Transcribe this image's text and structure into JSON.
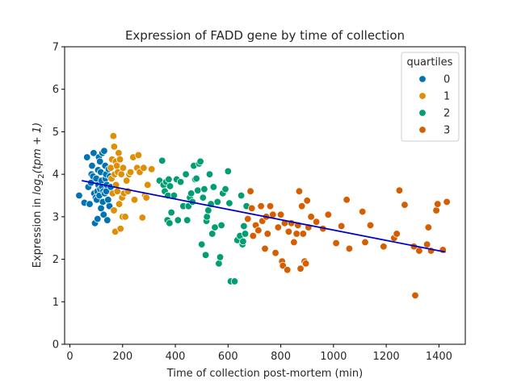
{
  "chart_data": {
    "type": "scatter",
    "title": "Expression of FADD gene by time of collection",
    "xlabel": "Time of collection post-mortem (min)",
    "ylabel_prefix": "Expression in ",
    "ylabel_math": "log",
    "ylabel_sub": "2",
    "ylabel_suffix": "(tpm + 1)",
    "xlim": [
      -20,
      1500
    ],
    "ylim": [
      0,
      7
    ],
    "xticks": [
      0,
      200,
      400,
      600,
      800,
      1000,
      1200,
      1400
    ],
    "yticks": [
      0,
      1,
      2,
      3,
      4,
      5,
      6,
      7
    ],
    "grid": false,
    "legend": {
      "title": "quartiles",
      "position": "top-right"
    },
    "trend_line": {
      "color": "#0000cc",
      "x": [
        45,
        1425
      ],
      "y": [
        3.85,
        2.17
      ]
    },
    "series": [
      {
        "name": "0",
        "color": "#0173b2",
        "points": [
          [
            35,
            3.5
          ],
          [
            55,
            3.33
          ],
          [
            65,
            4.4
          ],
          [
            70,
            3.7
          ],
          [
            75,
            3.3
          ],
          [
            80,
            3.8
          ],
          [
            82,
            4.0
          ],
          [
            84,
            4.2
          ],
          [
            88,
            3.95
          ],
          [
            90,
            4.5
          ],
          [
            92,
            3.55
          ],
          [
            95,
            2.85
          ],
          [
            98,
            3.45
          ],
          [
            100,
            3.9
          ],
          [
            102,
            3.4
          ],
          [
            104,
            3.6
          ],
          [
            105,
            2.95
          ],
          [
            107,
            4.1
          ],
          [
            108,
            3.75
          ],
          [
            110,
            4.4
          ],
          [
            112,
            3.5
          ],
          [
            114,
            4.3
          ],
          [
            115,
            3.65
          ],
          [
            117,
            4.05
          ],
          [
            118,
            3.2
          ],
          [
            120,
            3.85
          ],
          [
            122,
            3.7
          ],
          [
            123,
            4.5
          ],
          [
            125,
            3.35
          ],
          [
            127,
            3.6
          ],
          [
            128,
            3.05
          ],
          [
            130,
            4.55
          ],
          [
            132,
            3.55
          ],
          [
            134,
            4.2
          ],
          [
            135,
            3.9
          ],
          [
            137,
            4.0
          ],
          [
            138,
            3.6
          ],
          [
            140,
            3.75
          ],
          [
            142,
            2.92
          ],
          [
            145,
            3.4
          ],
          [
            147,
            4.12
          ],
          [
            150,
            3.25
          ],
          [
            152,
            3.95
          ],
          [
            155,
            3.7
          ]
        ]
      },
      {
        "name": "1",
        "color": "#de8f05",
        "points": [
          [
            155,
            4.15
          ],
          [
            158,
            3.9
          ],
          [
            160,
            4.35
          ],
          [
            162,
            3.55
          ],
          [
            165,
            4.9
          ],
          [
            167,
            3.15
          ],
          [
            168,
            4.65
          ],
          [
            170,
            4.0
          ],
          [
            172,
            2.65
          ],
          [
            174,
            4.3
          ],
          [
            175,
            3.75
          ],
          [
            178,
            4.2
          ],
          [
            180,
            3.6
          ],
          [
            182,
            4.05
          ],
          [
            185,
            4.5
          ],
          [
            187,
            3.3
          ],
          [
            190,
            4.35
          ],
          [
            192,
            2.72
          ],
          [
            195,
            4.0
          ],
          [
            198,
            3.45
          ],
          [
            200,
            3.0
          ],
          [
            202,
            4.15
          ],
          [
            205,
            3.55
          ],
          [
            210,
            3.0
          ],
          [
            215,
            3.85
          ],
          [
            220,
            3.6
          ],
          [
            225,
            4.0
          ],
          [
            230,
            4.05
          ],
          [
            240,
            4.4
          ],
          [
            245,
            3.4
          ],
          [
            255,
            4.15
          ],
          [
            260,
            4.45
          ],
          [
            265,
            4.05
          ],
          [
            275,
            2.98
          ],
          [
            280,
            4.15
          ],
          [
            285,
            3.5
          ],
          [
            290,
            3.45
          ],
          [
            295,
            3.75
          ],
          [
            310,
            4.12
          ]
        ]
      },
      {
        "name": "2",
        "color": "#029e73",
        "points": [
          [
            340,
            3.85
          ],
          [
            350,
            4.32
          ],
          [
            355,
            3.75
          ],
          [
            360,
            3.6
          ],
          [
            365,
            3.82
          ],
          [
            370,
            2.92
          ],
          [
            372,
            3.5
          ],
          [
            375,
            3.88
          ],
          [
            378,
            2.85
          ],
          [
            380,
            3.72
          ],
          [
            385,
            3.1
          ],
          [
            395,
            3.5
          ],
          [
            405,
            3.88
          ],
          [
            410,
            2.92
          ],
          [
            420,
            3.82
          ],
          [
            430,
            3.25
          ],
          [
            440,
            4.0
          ],
          [
            445,
            2.92
          ],
          [
            450,
            3.25
          ],
          [
            455,
            3.45
          ],
          [
            460,
            3.55
          ],
          [
            465,
            3.35
          ],
          [
            470,
            4.2
          ],
          [
            475,
            3.88
          ],
          [
            480,
            3.9
          ],
          [
            485,
            3.62
          ],
          [
            490,
            4.25
          ],
          [
            495,
            4.3
          ],
          [
            500,
            2.35
          ],
          [
            505,
            3.45
          ],
          [
            510,
            3.65
          ],
          [
            515,
            2.1
          ],
          [
            518,
            2.9
          ],
          [
            520,
            3.0
          ],
          [
            525,
            3.15
          ],
          [
            530,
            4.0
          ],
          [
            535,
            3.3
          ],
          [
            540,
            2.6
          ],
          [
            545,
            3.7
          ],
          [
            550,
            2.75
          ],
          [
            560,
            3.35
          ],
          [
            565,
            1.9
          ],
          [
            570,
            2.05
          ],
          [
            575,
            2.8
          ],
          [
            580,
            3.55
          ],
          [
            590,
            3.65
          ],
          [
            600,
            4.07
          ],
          [
            605,
            3.32
          ],
          [
            610,
            1.48
          ],
          [
            625,
            1.48
          ],
          [
            635,
            2.45
          ],
          [
            645,
            2.55
          ],
          [
            650,
            3.5
          ],
          [
            655,
            2.35
          ],
          [
            657,
            2.42
          ],
          [
            660,
            2.78
          ],
          [
            665,
            2.6
          ],
          [
            670,
            3.25
          ]
        ]
      },
      {
        "name": "3",
        "color": "#d55e00",
        "points": [
          [
            675,
            2.95
          ],
          [
            685,
            3.6
          ],
          [
            690,
            3.2
          ],
          [
            695,
            2.55
          ],
          [
            705,
            2.8
          ],
          [
            715,
            2.68
          ],
          [
            725,
            3.25
          ],
          [
            730,
            2.9
          ],
          [
            740,
            2.25
          ],
          [
            745,
            3.0
          ],
          [
            750,
            2.6
          ],
          [
            760,
            3.25
          ],
          [
            770,
            3.05
          ],
          [
            780,
            2.15
          ],
          [
            790,
            2.75
          ],
          [
            800,
            3.05
          ],
          [
            805,
            1.95
          ],
          [
            808,
            1.85
          ],
          [
            815,
            2.85
          ],
          [
            825,
            1.75
          ],
          [
            830,
            2.65
          ],
          [
            840,
            2.85
          ],
          [
            850,
            2.4
          ],
          [
            860,
            2.6
          ],
          [
            865,
            2.8
          ],
          [
            870,
            3.6
          ],
          [
            875,
            1.78
          ],
          [
            880,
            3.25
          ],
          [
            885,
            2.6
          ],
          [
            890,
            1.95
          ],
          [
            895,
            1.9
          ],
          [
            900,
            3.38
          ],
          [
            905,
            2.75
          ],
          [
            915,
            3.0
          ],
          [
            935,
            2.88
          ],
          [
            960,
            2.72
          ],
          [
            980,
            3.05
          ],
          [
            1010,
            2.38
          ],
          [
            1030,
            2.78
          ],
          [
            1050,
            3.4
          ],
          [
            1060,
            2.25
          ],
          [
            1110,
            3.12
          ],
          [
            1120,
            2.4
          ],
          [
            1140,
            2.8
          ],
          [
            1190,
            2.3
          ],
          [
            1230,
            2.5
          ],
          [
            1240,
            2.6
          ],
          [
            1250,
            3.62
          ],
          [
            1270,
            3.28
          ],
          [
            1305,
            2.3
          ],
          [
            1310,
            1.15
          ],
          [
            1325,
            2.2
          ],
          [
            1355,
            2.35
          ],
          [
            1360,
            2.75
          ],
          [
            1370,
            2.2
          ],
          [
            1390,
            3.15
          ],
          [
            1395,
            3.3
          ],
          [
            1415,
            2.22
          ],
          [
            1430,
            3.35
          ]
        ]
      }
    ]
  }
}
